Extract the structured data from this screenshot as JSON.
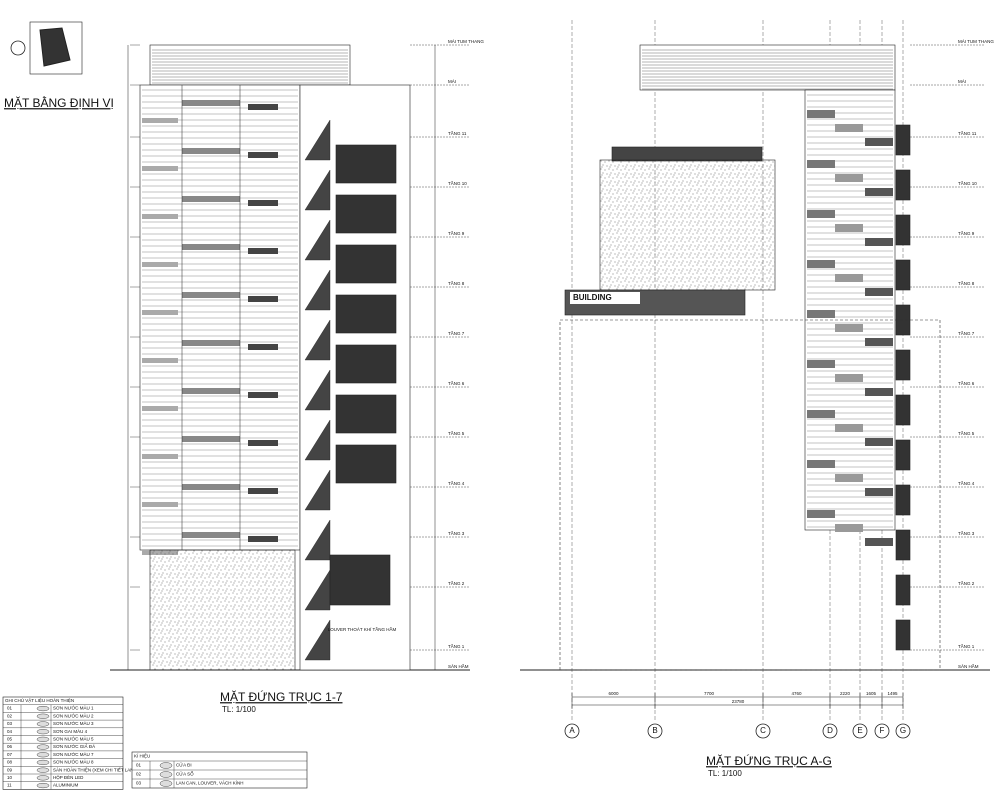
{
  "left_panel": {
    "site_plan_title": "MẶT BẰNG ĐỊNH VỊ",
    "title": "MẶT ĐỨNG TRỤC 1-7",
    "scale": "TL: 1/100",
    "note": "LOUVER THOÁT KHÍ TẦNG HẦM"
  },
  "right_panel": {
    "title": "MẶT ĐỨNG TRỤC A-G",
    "scale": "TL: 1/100",
    "sign": "BUILDING",
    "axes": [
      "A",
      "B",
      "C",
      "D",
      "E",
      "F",
      "G"
    ],
    "dimensions": [
      "6000",
      "7700",
      "4760",
      "2220",
      "1605",
      "1495"
    ],
    "total_dimension": "23780"
  },
  "levels": [
    "MÁI TUM THANG",
    "MÁI",
    "TẦNG 11",
    "TẦNG 10",
    "TẦNG 9",
    "TẦNG 8",
    "TẦNG 7",
    "TẦNG 6",
    "TẦNG 5",
    "TẦNG 4",
    "TẦNG 3",
    "TẦNG 2",
    "TẦNG 1",
    "SÂN HẦM"
  ],
  "materials": {
    "header": "GHI CHÚ VẬT LIỆU HOÀN THIỆN",
    "rows": [
      [
        "01",
        "SƠN NƯỚC MÀU 1"
      ],
      [
        "02",
        "SƠN NƯỚC MÀU 2"
      ],
      [
        "03",
        "SƠN NƯỚC MÀU 3"
      ],
      [
        "04",
        "SƠN GAI MÀU 4"
      ],
      [
        "05",
        "SƠN NƯỚC MÀU 5"
      ],
      [
        "06",
        "SƠN NƯỚC GIẢ ĐÁ"
      ],
      [
        "07",
        "SƠN NƯỚC MÀU 7"
      ],
      [
        "08",
        "SƠN NƯỚC MÀU 8"
      ],
      [
        "09",
        "SÀN HOÀN THIỆN (XEM CHI TIẾT LANDSCAPE)"
      ],
      [
        "10",
        "HỘP ĐÈN LED"
      ],
      [
        "11",
        "ALUMINIUM"
      ]
    ]
  },
  "symbols": {
    "header": "KÍ HIỆU",
    "rows": [
      [
        "01",
        "CỬA ĐI"
      ],
      [
        "02",
        "CỬA SỔ"
      ],
      [
        "03",
        "LAN CAN, LOUVER, VÁCH KÍNH"
      ]
    ]
  }
}
